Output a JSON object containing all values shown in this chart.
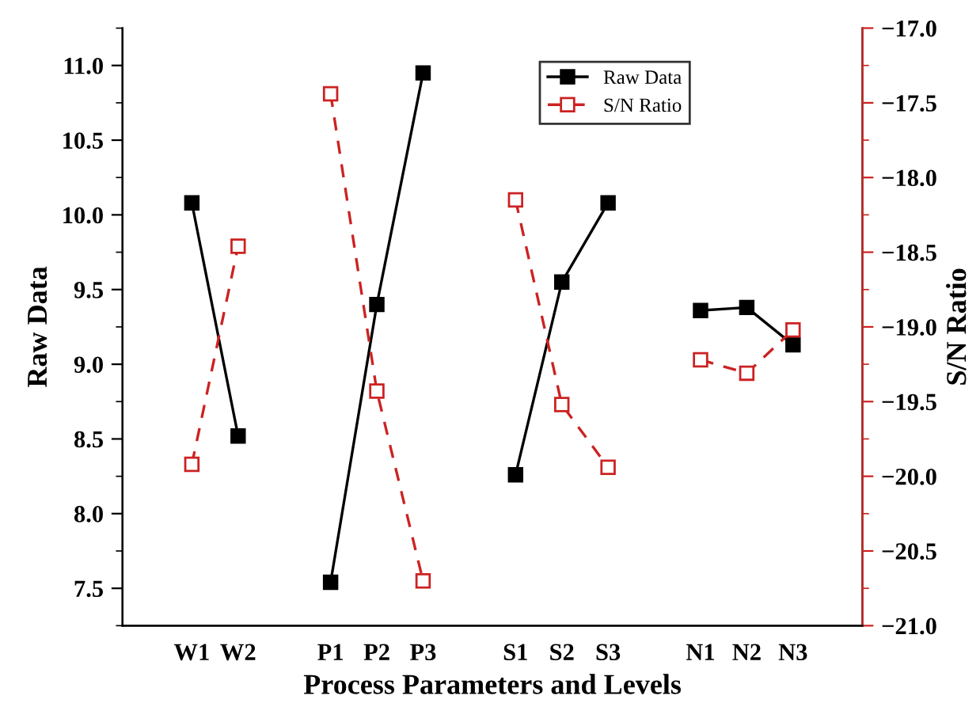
{
  "chart_data": {
    "type": "line",
    "xlabel": "Process Parameters and Levels",
    "ylabel": "Raw Data",
    "y2label": "S/N Ratio",
    "categories": [
      "W1",
      "W2",
      null,
      "P1",
      "P2",
      "P3",
      null,
      "S1",
      "S2",
      "S3",
      null,
      "N1",
      "N2",
      "N3"
    ],
    "series": [
      {
        "name": "Raw Data",
        "color": "#000000",
        "marker": "square",
        "line_style": "solid",
        "values": [
          10.08,
          8.52,
          null,
          7.54,
          9.4,
          10.95,
          null,
          8.26,
          9.55,
          10.08,
          null,
          9.36,
          9.38,
          9.13
        ]
      },
      {
        "name": "S/N Ratio",
        "color": "#cc2222",
        "marker": "square",
        "line_style": "dashed",
        "axis": "y2",
        "values": [
          -19.92,
          -18.46,
          null,
          -17.44,
          -19.43,
          -20.7,
          null,
          -18.15,
          -19.52,
          -19.94,
          null,
          -19.22,
          -19.31,
          -19.02
        ]
      }
    ],
    "ylim": [
      7.25,
      11.25
    ],
    "yticks": [
      {
        "value": 7.5,
        "label": "7.5"
      },
      {
        "value": 8.0,
        "label": "8.0"
      },
      {
        "value": 8.5,
        "label": "8.5"
      },
      {
        "value": 9.0,
        "label": "9.0"
      },
      {
        "value": 9.5,
        "label": "9.5"
      },
      {
        "value": 10.0,
        "label": "10.0"
      },
      {
        "value": 10.5,
        "label": "10.5"
      },
      {
        "value": 11.0,
        "label": "11.0"
      }
    ],
    "y2lim": [
      -21,
      -17
    ],
    "y2ticks": [
      {
        "value": -21,
        "label": "−21.0"
      },
      {
        "value": -20.5,
        "label": "−20.5"
      },
      {
        "value": -20,
        "label": "−20.0"
      },
      {
        "value": -19.5,
        "label": "−19.5"
      },
      {
        "value": -19,
        "label": "−19.0"
      },
      {
        "value": -18.5,
        "label": "−18.5"
      },
      {
        "value": -18,
        "label": "−18.0"
      },
      {
        "value": -17.5,
        "label": "−17.5"
      },
      {
        "value": -17,
        "label": "−17.0"
      }
    ],
    "grid": false,
    "legend": "top right"
  }
}
